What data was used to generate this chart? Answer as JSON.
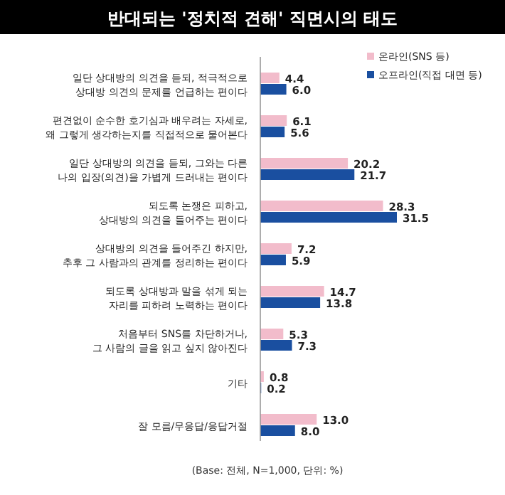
{
  "chart_data": {
    "type": "bar",
    "orientation": "horizontal",
    "title": "반대되는 '정치적 견해' 직면시의 태도",
    "categories": [
      "일단 상대방의 의견을 듣되, 적극적으로\n상대방 의견의 문제를 언급하는 편이다",
      "편견없이 순수한 호기심과 배우려는 자세로,\n왜 그렇게 생각하는지를 직접적으로 물어본다",
      "일단 상대방의 의견을 듣되, 그와는 다른\n나의 입장(의견)을 가볍게 드러내는 편이다",
      "되도록 논쟁은 피하고,\n상대방의 의견을 들어주는 편이다",
      "상대방의 의견을 들어주긴 하지만,\n추후 그 사람과의 관계를 정리하는 편이다",
      "되도록 상대방과 말을 섞게 되는\n자리를 피하려 노력하는 편이다",
      "처음부터 SNS를 차단하거나,\n그 사람의 글을 읽고 싶지 않아진다",
      "기타",
      "잘 모름/무응답/응답거절"
    ],
    "series": [
      {
        "name": "온라인(SNS 등)",
        "color": "#f2bccb",
        "values": [
          4.4,
          6.1,
          20.2,
          28.3,
          7.2,
          14.7,
          5.3,
          0.8,
          13.0
        ],
        "value_labels": [
          "4.4",
          "6.1",
          "20.2",
          "28.3",
          "7.2",
          "14.7",
          "5.3",
          "0.8",
          "13.0"
        ]
      },
      {
        "name": "오프라인(직접 대면 등)",
        "color": "#1a4fa0",
        "values": [
          6.0,
          5.6,
          21.7,
          31.5,
          5.9,
          13.8,
          7.3,
          0.2,
          8.0
        ],
        "value_labels": [
          "6.0",
          "5.6",
          "21.7",
          "31.5",
          "5.9",
          "13.8",
          "7.3",
          "0.2",
          "8.0"
        ]
      }
    ],
    "legend": "top right",
    "annotations": [
      "(Base: 전체, N=1,000, 단위: %)"
    ]
  }
}
